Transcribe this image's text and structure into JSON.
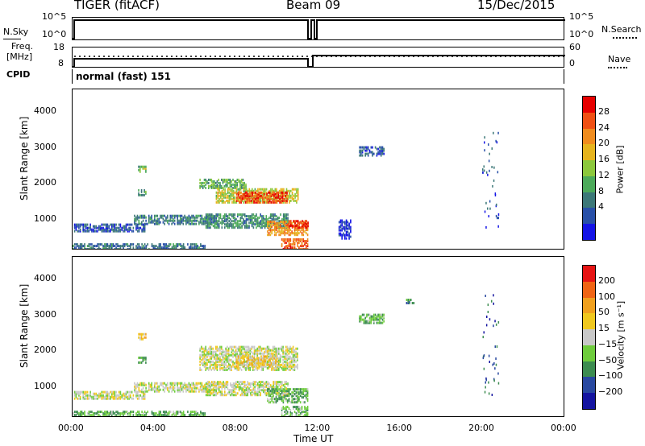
{
  "header": {
    "title": "TIGER (fitACF)",
    "beam": "Beam 09",
    "date": "15/Dec/2015"
  },
  "top_panels": {
    "nsky_label": "N.Sky",
    "nsearch_label": "N.Search",
    "nsky_ticks": [
      "10^5",
      "10^0"
    ],
    "nsearch_ticks": [
      "10^5",
      "10^0"
    ],
    "freq_label": "Freq.",
    "freq_unit": "[MHz]",
    "freq_ticks": [
      "18",
      "8"
    ],
    "nave_label": "Nave",
    "nave_ticks": [
      "60",
      "0"
    ],
    "cpid_label": "CPID",
    "cpid_value": "normal (fast) 151"
  },
  "x_axis": {
    "label": "Time UT",
    "ticks": [
      "00:00",
      "04:00",
      "08:00",
      "12:00",
      "16:00",
      "20:00",
      "00:00"
    ]
  },
  "chart_data": [
    {
      "type": "heatmap",
      "name": "power",
      "ylabel": "Slant Range [km]",
      "yticks": [
        1000,
        2000,
        3000,
        4000
      ],
      "ylim": [
        180,
        4600
      ],
      "xlim": [
        0,
        24
      ],
      "colorbar_label": "Power [dB]",
      "colorbar_ticks": [
        "28",
        "24",
        "20",
        "16",
        "12",
        "8",
        "4"
      ],
      "colorbar_colors": [
        "#1414e6",
        "#2850a8",
        "#3c7878",
        "#4caa5a",
        "#8cc83c",
        "#e6b41e",
        "#f08c1e",
        "#f05014",
        "#e60000"
      ],
      "blobs": [
        {
          "t0": 0.0,
          "t1": 6.5,
          "r0": 200,
          "r1": 380,
          "level": 0.25
        },
        {
          "t0": 0.0,
          "t1": 3.5,
          "r0": 700,
          "r1": 900,
          "level": 0.18
        },
        {
          "t0": 3.0,
          "t1": 7.0,
          "r0": 900,
          "r1": 1150,
          "level": 0.28
        },
        {
          "t0": 6.2,
          "t1": 8.5,
          "r0": 1900,
          "r1": 2150,
          "level": 0.4
        },
        {
          "t0": 7.0,
          "t1": 11.0,
          "r0": 1500,
          "r1": 1900,
          "level": 0.55
        },
        {
          "t0": 8.0,
          "t1": 10.5,
          "r0": 1500,
          "r1": 1800,
          "level": 0.85
        },
        {
          "t0": 6.5,
          "t1": 10.5,
          "r0": 800,
          "r1": 1200,
          "level": 0.32
        },
        {
          "t0": 9.5,
          "t1": 11.5,
          "r0": 600,
          "r1": 1000,
          "level": 0.7
        },
        {
          "t0": 10.2,
          "t1": 11.5,
          "r0": 200,
          "r1": 500,
          "level": 0.8
        },
        {
          "t0": 10.5,
          "t1": 11.5,
          "r0": 800,
          "r1": 1000,
          "level": 0.9
        },
        {
          "t0": 3.2,
          "t1": 3.6,
          "r0": 1700,
          "r1": 1850,
          "level": 0.35
        },
        {
          "t0": 3.2,
          "t1": 3.6,
          "r0": 2350,
          "r1": 2500,
          "level": 0.45
        },
        {
          "t0": 14.0,
          "t1": 15.2,
          "r0": 2800,
          "r1": 3050,
          "level": 0.2
        },
        {
          "t0": 13.0,
          "t1": 13.6,
          "r0": 500,
          "r1": 1000,
          "level": 0.1
        }
      ]
    },
    {
      "type": "heatmap",
      "name": "velocity",
      "ylabel": "Slant Range [km]",
      "yticks": [
        1000,
        2000,
        3000,
        4000
      ],
      "ylim": [
        180,
        4600
      ],
      "xlim": [
        0,
        24
      ],
      "colorbar_label": "Velocity [m s⁻¹]",
      "colorbar_ticks": [
        "200",
        "100",
        "50",
        "15",
        "−15",
        "−50",
        "−100",
        "−200"
      ],
      "colorbar_colors": [
        "#1414a0",
        "#2848a0",
        "#3c8c50",
        "#6ecc3c",
        "#c8c8c8",
        "#f0c81e",
        "#f0a01e",
        "#f06414",
        "#e61414"
      ],
      "blobs": [
        {
          "t0": 0.0,
          "t1": 6.5,
          "r0": 200,
          "r1": 380,
          "level": 0.35
        },
        {
          "t0": 0.0,
          "t1": 3.5,
          "r0": 700,
          "r1": 900,
          "level": 0.5
        },
        {
          "t0": 3.0,
          "t1": 7.0,
          "r0": 900,
          "r1": 1150,
          "level": 0.5
        },
        {
          "t0": 6.2,
          "t1": 11.0,
          "r0": 1500,
          "r1": 2150,
          "level": 0.5
        },
        {
          "t0": 8.0,
          "t1": 10.0,
          "r0": 1600,
          "r1": 1900,
          "level": 0.6
        },
        {
          "t0": 6.5,
          "t1": 10.5,
          "r0": 800,
          "r1": 1200,
          "level": 0.5
        },
        {
          "t0": 9.5,
          "t1": 11.5,
          "r0": 600,
          "r1": 1000,
          "level": 0.35
        },
        {
          "t0": 10.2,
          "t1": 11.5,
          "r0": 200,
          "r1": 500,
          "level": 0.38
        },
        {
          "t0": 3.2,
          "t1": 3.6,
          "r0": 1700,
          "r1": 1850,
          "level": 0.3
        },
        {
          "t0": 3.2,
          "t1": 3.6,
          "r0": 2350,
          "r1": 2500,
          "level": 0.65
        },
        {
          "t0": 14.0,
          "t1": 15.2,
          "r0": 2800,
          "r1": 3050,
          "level": 0.35
        },
        {
          "t0": 16.3,
          "t1": 16.7,
          "r0": 3350,
          "r1": 3450,
          "level": 0.3
        }
      ]
    }
  ]
}
